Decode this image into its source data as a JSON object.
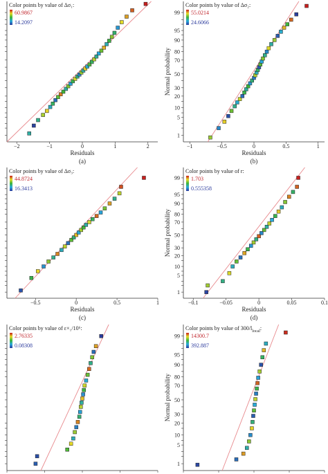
{
  "panels": [
    {
      "id": "a",
      "caption": "(a)",
      "legend_title": "Color points by value of Δσ₁:",
      "legend_max": "60.9867",
      "legend_min": "14.2097",
      "xlabel": "Residuals",
      "ylabel": "",
      "xticks": [
        "−2",
        "−1",
        "0",
        "1",
        "2"
      ],
      "yticks": []
    },
    {
      "id": "b",
      "caption": "(b)",
      "legend_title": "Color points by value of Δσ₂:",
      "legend_max": "55.0214",
      "legend_min": "24.6066",
      "xlabel": "Residuals",
      "ylabel": "Normal probability",
      "xticks": [
        "−1",
        "−0.5",
        "0",
        "0.5",
        "1"
      ],
      "yticks": [
        "99",
        "95",
        "90",
        "80",
        "70",
        "50",
        "30",
        "20",
        "10",
        "5",
        "1"
      ]
    },
    {
      "id": "c",
      "caption": "(c)",
      "legend_title": "Color points by value of Δσ₃:",
      "legend_max": "44.8724",
      "legend_min": "16.3413",
      "xlabel": "Residuals",
      "ylabel": "",
      "xticks": [
        "−0.5",
        "0",
        "0.5",
        "1"
      ],
      "yticks": []
    },
    {
      "id": "d",
      "caption": "(d)",
      "legend_title": "Color points by value of r:",
      "legend_max": "1.703",
      "legend_min": "0.555358",
      "xlabel": "Residuals",
      "ylabel": "Normal probability",
      "xticks": [
        "−0.1",
        "−0.05",
        "0",
        "0.05",
        "0.1"
      ],
      "yticks": [
        "99",
        "95",
        "90",
        "80",
        "70",
        "50",
        "30",
        "20",
        "10",
        "5",
        "1"
      ]
    },
    {
      "id": "e",
      "caption": "",
      "legend_title": "Color points by value of ε×₁/10⁶:",
      "legend_max": "2.76335",
      "legend_min": "0.08308",
      "xlabel": "",
      "ylabel": "",
      "xticks": [],
      "yticks": []
    },
    {
      "id": "f",
      "caption": "",
      "legend_title": "Color points by value of 300/l",
      "legend_title_sub": "local",
      "legend_title_end": ":",
      "legend_max": "14300.7",
      "legend_min": "392.887",
      "xlabel": "",
      "ylabel": "Normal probability",
      "xticks": [],
      "yticks": [
        "99",
        "95",
        "90",
        "80",
        "70",
        "50",
        "30",
        "20",
        "10",
        "5",
        "1"
      ]
    }
  ],
  "chart_data": [
    {
      "type": "scatter",
      "panel": "a",
      "title": "",
      "xlabel": "Residuals",
      "ylabel": "",
      "xlim": [
        -2.3,
        2.3
      ],
      "ylim": [
        0.5,
        99.7
      ],
      "y_scale": "normal-probability",
      "grid": false,
      "color_scale": {
        "label": "Δσ1",
        "min": 14.2097,
        "max": 60.9867
      },
      "reference_line": {
        "x": [
          -2.3,
          2.1
        ],
        "y": [
          0.45,
          99.8
        ]
      },
      "x": [
        -1.62,
        -1.48,
        -1.35,
        -1.2,
        -1.08,
        -0.98,
        -0.9,
        -0.82,
        -0.74,
        -0.66,
        -0.58,
        -0.5,
        -0.43,
        -0.36,
        -0.29,
        -0.22,
        -0.15,
        -0.09,
        -0.03,
        0.03,
        0.09,
        0.15,
        0.22,
        0.29,
        0.36,
        0.43,
        0.5,
        0.58,
        0.66,
        0.74,
        0.82,
        0.9,
        0.98,
        1.08,
        1.2,
        1.35,
        1.52,
        1.93
      ],
      "y": [
        1.2,
        2.5,
        4.0,
        6.0,
        8.0,
        10.5,
        13.0,
        16.0,
        19.0,
        22.0,
        25.0,
        28.5,
        32.0,
        35.5,
        39.0,
        42.5,
        46.0,
        49.0,
        52.0,
        55.0,
        58.0,
        61.0,
        64.0,
        67.5,
        71.0,
        74.5,
        78.0,
        81.0,
        84.0,
        87.0,
        89.5,
        92.0,
        94.0,
        96.0,
        97.5,
        98.5,
        99.2,
        99.6
      ],
      "c": [
        30.1,
        15.0,
        32.0,
        45.0,
        50.0,
        28.0,
        35.0,
        20.0,
        40.0,
        55.0,
        38.0,
        30.0,
        42.0,
        25.0,
        36.0,
        48.0,
        33.0,
        22.0,
        44.0,
        30.0,
        50.0,
        27.0,
        39.0,
        35.0,
        46.0,
        31.0,
        26.0,
        41.0,
        52.0,
        29.0,
        37.0,
        43.0,
        34.0,
        24.0,
        49.0,
        53.0,
        57.0,
        60.9
      ]
    },
    {
      "type": "scatter",
      "panel": "b",
      "title": "",
      "xlabel": "Residuals",
      "ylabel": "Normal probability",
      "xlim": [
        -1.1,
        1.1
      ],
      "ylim": [
        0.5,
        99.7
      ],
      "y_scale": "normal-probability",
      "grid": false,
      "color_scale": {
        "label": "Δσ2",
        "min": 24.6066,
        "max": 55.0214
      },
      "reference_line": {
        "x": [
          -0.72,
          0.7
        ],
        "y": [
          0.3,
          99.8
        ]
      },
      "x": [
        -0.68,
        -0.55,
        -0.46,
        -0.4,
        -0.35,
        -0.3,
        -0.26,
        -0.22,
        -0.18,
        -0.15,
        -0.12,
        -0.09,
        -0.06,
        -0.03,
        0.0,
        0.02,
        0.04,
        0.06,
        0.08,
        0.1,
        0.12,
        0.14,
        0.17,
        0.2,
        0.23,
        0.27,
        0.32,
        0.37,
        0.42,
        0.47,
        0.52,
        0.58,
        0.66,
        0.82
      ],
      "y": [
        0.8,
        2.0,
        3.5,
        5.5,
        8.0,
        11.0,
        14.0,
        17.0,
        20.0,
        24.0,
        28.0,
        32.0,
        36.0,
        40.0,
        44.0,
        48.0,
        52.0,
        56.0,
        60.0,
        64.0,
        68.0,
        72.0,
        76.0,
        80.0,
        83.5,
        87.0,
        90.0,
        92.5,
        94.5,
        96.0,
        97.0,
        98.0,
        98.8,
        99.5
      ],
      "c": [
        44.0,
        30.0,
        48.0,
        26.0,
        42.0,
        36.0,
        33.0,
        46.0,
        28.0,
        39.0,
        35.0,
        40.0,
        31.0,
        37.0,
        29.0,
        45.0,
        34.0,
        38.0,
        27.0,
        41.0,
        32.0,
        43.0,
        36.0,
        30.0,
        47.0,
        35.0,
        44.0,
        27.0,
        33.0,
        49.0,
        40.0,
        52.0,
        25.0,
        55.0
      ]
    },
    {
      "type": "scatter",
      "panel": "c",
      "title": "",
      "xlabel": "Residuals",
      "ylabel": "",
      "xlim": [
        -0.85,
        1.0
      ],
      "ylim": [
        0.5,
        99.7
      ],
      "y_scale": "normal-probability",
      "grid": false,
      "color_scale": {
        "label": "Δσ3",
        "min": 16.3413,
        "max": 44.8724
      },
      "reference_line": {
        "x": [
          -0.75,
          0.75
        ],
        "y": [
          0.3,
          99.8
        ]
      },
      "x": [
        -0.68,
        -0.55,
        -0.47,
        -0.4,
        -0.34,
        -0.28,
        -0.23,
        -0.18,
        -0.14,
        -0.1,
        -0.06,
        -0.03,
        0.0,
        0.03,
        0.06,
        0.09,
        0.12,
        0.16,
        0.2,
        0.25,
        0.3,
        0.35,
        0.41,
        0.47,
        0.53,
        0.55,
        0.83
      ],
      "y": [
        1.2,
        4.0,
        7.0,
        10.0,
        14.0,
        18.0,
        22.0,
        27.0,
        32.0,
        37.0,
        42.0,
        46.0,
        50.0,
        54.0,
        58.0,
        62.0,
        66.0,
        70.0,
        74.0,
        78.0,
        82.0,
        86.0,
        90.0,
        93.0,
        95.5,
        97.5,
        99.0
      ],
      "c": [
        18.0,
        30.0,
        38.0,
        22.0,
        34.0,
        27.0,
        41.0,
        25.0,
        36.0,
        20.0,
        32.0,
        28.0,
        39.0,
        24.0,
        35.0,
        31.0,
        26.0,
        37.0,
        29.0,
        42.0,
        23.0,
        33.0,
        40.0,
        27.0,
        36.0,
        43.0,
        44.8
      ]
    },
    {
      "type": "scatter",
      "panel": "d",
      "title": "",
      "xlabel": "Residuals",
      "ylabel": "Normal probability",
      "xlim": [
        -0.115,
        0.1
      ],
      "ylim": [
        0.5,
        99.7
      ],
      "y_scale": "normal-probability",
      "grid": false,
      "color_scale": {
        "label": "r",
        "min": 0.555358,
        "max": 1.703
      },
      "reference_line": {
        "x": [
          -0.085,
          0.07
        ],
        "y": [
          0.3,
          99.8
        ]
      },
      "x": [
        -0.08,
        -0.078,
        -0.055,
        -0.045,
        -0.04,
        -0.034,
        -0.028,
        -0.022,
        -0.017,
        -0.012,
        -0.008,
        -0.004,
        0.0,
        0.004,
        0.008,
        0.012,
        0.016,
        0.02,
        0.025,
        0.03,
        0.035,
        0.04,
        0.046,
        0.052,
        0.058,
        0.06
      ],
      "y": [
        1.0,
        2.0,
        3.0,
        6.0,
        10.0,
        14.0,
        18.0,
        23.0,
        28.0,
        33.0,
        38.0,
        43.0,
        48.0,
        53.0,
        58.0,
        63.0,
        68.0,
        73.0,
        78.0,
        83.0,
        87.0,
        91.0,
        94.0,
        96.0,
        97.5,
        99.0
      ],
      "c": [
        0.58,
        1.3,
        1.0,
        1.4,
        0.9,
        1.2,
        0.7,
        1.5,
        1.1,
        0.8,
        1.3,
        1.0,
        1.6,
        0.75,
        1.2,
        0.95,
        1.35,
        0.85,
        1.1,
        1.45,
        0.9,
        1.25,
        1.55,
        1.05,
        1.6,
        1.7
      ]
    },
    {
      "type": "scatter",
      "panel": "e",
      "title": "",
      "xlabel": "",
      "ylabel": "",
      "xlim": [
        -1.0,
        1.0
      ],
      "ylim": [
        0.5,
        99.7
      ],
      "y_scale": "normal-probability",
      "grid": false,
      "color_scale": {
        "label": "ε×1/10^6",
        "min": 0.08308,
        "max": 2.76335
      },
      "reference_line": {
        "x": [
          -0.55,
          0.35
        ],
        "y": [
          0.3,
          99.8
        ]
      },
      "x": [
        -0.62,
        -0.6,
        -0.2,
        -0.15,
        -0.12,
        -0.1,
        -0.08,
        -0.06,
        -0.04,
        -0.03,
        -0.02,
        -0.01,
        0.0,
        0.01,
        0.02,
        0.03,
        0.05,
        0.07,
        0.09,
        0.11,
        0.13,
        0.15,
        0.18,
        0.25
      ],
      "y": [
        1.0,
        2.0,
        3.5,
        5.5,
        8.0,
        12.0,
        16.0,
        21.0,
        27.0,
        33.0,
        40.0,
        46.0,
        52.0,
        58.0,
        64.0,
        70.0,
        76.0,
        82.0,
        87.0,
        91.0,
        94.0,
        96.0,
        97.5,
        99.0
      ],
      "c": [
        0.3,
        0.2,
        1.5,
        2.1,
        0.9,
        1.8,
        0.5,
        2.4,
        1.2,
        0.7,
        1.9,
        1.0,
        2.2,
        0.6,
        1.4,
        2.0,
        0.8,
        1.6,
        2.5,
        1.1,
        1.7,
        0.4,
        2.3,
        0.1
      ]
    },
    {
      "type": "scatter",
      "panel": "f",
      "title": "",
      "xlabel": "",
      "ylabel": "Normal probability",
      "xlim": [
        -1.0,
        1.0
      ],
      "ylim": [
        0.5,
        99.7
      ],
      "y_scale": "normal-probability",
      "grid": false,
      "color_scale": {
        "label": "300/l_local",
        "min": 392.887,
        "max": 14300.7
      },
      "reference_line": {
        "x": [
          -0.45,
          0.35
        ],
        "y": [
          0.3,
          99.8
        ]
      },
      "x": [
        -0.8,
        -0.25,
        -0.15,
        -0.1,
        -0.07,
        -0.05,
        -0.03,
        -0.02,
        -0.01,
        0.0,
        0.01,
        0.02,
        0.03,
        0.04,
        0.05,
        0.06,
        0.08,
        0.1,
        0.12,
        0.14,
        0.17,
        0.45
      ],
      "y": [
        0.9,
        1.5,
        2.5,
        4.0,
        6.5,
        10.0,
        15.0,
        21.0,
        28.0,
        35.0,
        43.0,
        51.0,
        59.0,
        66.0,
        73.0,
        79.0,
        85.0,
        90.0,
        94.0,
        96.5,
        98.0,
        99.3
      ],
      "c": [
        800,
        2000,
        12000,
        5000,
        9000,
        3000,
        11000,
        6000,
        1500,
        8000,
        4000,
        10000,
        2500,
        7000,
        13000,
        3500,
        9500,
        1200,
        6500,
        11500,
        4500,
        14000
      ]
    }
  ]
}
